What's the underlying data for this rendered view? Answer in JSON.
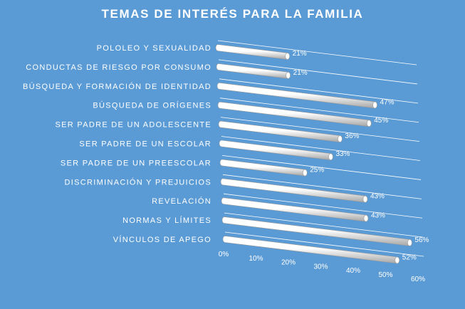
{
  "chart_data": {
    "type": "bar",
    "orientation": "horizontal",
    "title": "TEMAS DE INTERÉS PARA LA FAMILIA",
    "categories": [
      "POLOLEO Y SEXUALIDAD",
      "CONDUCTAS DE RIESGO POR CONSUMO",
      "BÚSQUEDA Y FORMACIÓN DE IDENTIDAD",
      "BÚSQUEDA DE ORÍGENES",
      "SER PADRE DE UN ADOLESCENTE",
      "SER PADRE DE UN ESCOLAR",
      "SER PADRE DE UN PREESCOLAR",
      "DISCRIMINACIÓN Y PREJUICIOS",
      "REVELACIÓN",
      "NORMAS Y LÍMITES",
      "VÍNCULOS DE APEGO"
    ],
    "values": [
      21,
      21,
      47,
      45,
      36,
      33,
      25,
      43,
      43,
      56,
      52
    ],
    "value_labels": [
      "21%",
      "21%",
      "47%",
      "45%",
      "36%",
      "33%",
      "25%",
      "43%",
      "43%",
      "56%",
      "52%"
    ],
    "xlim": [
      0,
      60
    ],
    "x_ticks": [
      "0%",
      "10%",
      "20%",
      "30%",
      "40%",
      "50%",
      "60%"
    ],
    "grid": true,
    "legend": "none",
    "colors": {
      "background": "#5b9bd5",
      "bar_light": "#ffffff",
      "bar_shade": "#bfbfbf",
      "text": "#ffffff"
    }
  }
}
